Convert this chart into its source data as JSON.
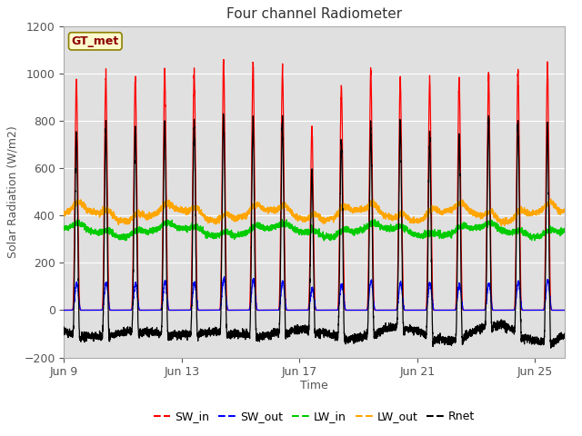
{
  "title": "Four channel Radiometer",
  "xlabel": "Time",
  "ylabel": "Solar Radiation (W/m2)",
  "ylim": [
    -200,
    1200
  ],
  "annotation_text": "GT_met",
  "annotation_color": "#8B0000",
  "annotation_bg": "#FFFACD",
  "annotation_edge": "#8B8000",
  "bg_color": "#E8E8E8",
  "x_tick_labels": [
    "Jun 9",
    "Jun 13",
    "Jun 17",
    "Jun 21",
    "Jun 25"
  ],
  "x_tick_positions": [
    0,
    4,
    8,
    12,
    16
  ],
  "y_ticks": [
    -200,
    0,
    200,
    400,
    600,
    800,
    1000,
    1200
  ],
  "legend_labels": [
    "SW_in",
    "SW_out",
    "LW_in",
    "LW_out",
    "Rnet"
  ],
  "legend_colors": [
    "red",
    "blue",
    "green",
    "orange",
    "black"
  ],
  "num_days": 17,
  "ppd": 288,
  "SW_in_peaks": [
    975,
    985,
    980,
    1005,
    1000,
    1050,
    1040,
    1010,
    760,
    940,
    1005,
    980,
    975,
    975,
    1000,
    1010,
    1030
  ],
  "SW_out_peaks": [
    110,
    115,
    115,
    120,
    115,
    135,
    130,
    120,
    90,
    110,
    125,
    115,
    115,
    110,
    115,
    120,
    125
  ],
  "LW_in_base": 330,
  "LW_out_base": 400,
  "Rnet_night": -100
}
